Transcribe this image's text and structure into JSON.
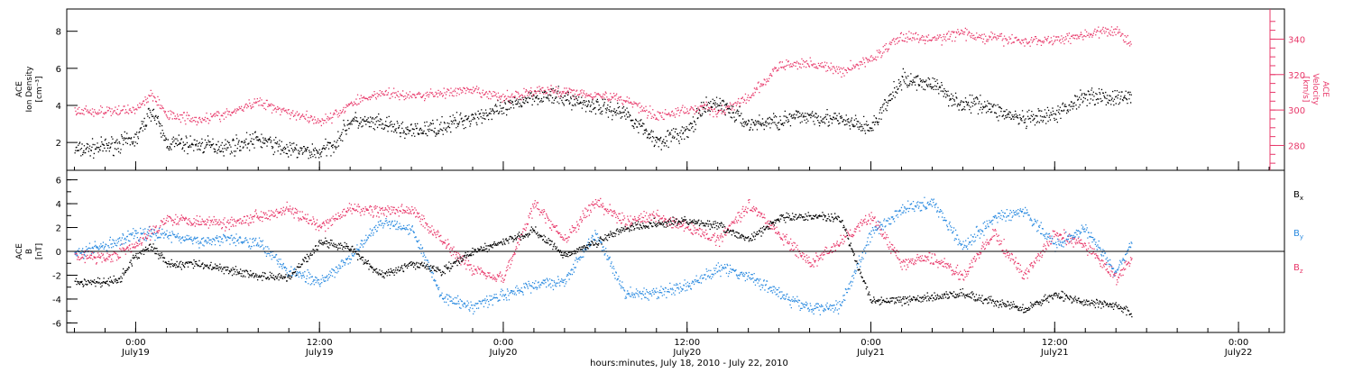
{
  "colors": {
    "axis": "#000000",
    "density": "#000000",
    "velocity": "#e8386a",
    "bx": "#000000",
    "by": "#2a8ae0",
    "bz": "#e8386a"
  },
  "xaxis": {
    "title": "hours:minutes, July 18, 2010 - July 22, 2010",
    "ticks": [
      {
        "time": "0:00",
        "date": "July19"
      },
      {
        "time": "12:00",
        "date": "July19"
      },
      {
        "time": "0:00",
        "date": "July20"
      },
      {
        "time": "12:00",
        "date": "July20"
      },
      {
        "time": "0:00",
        "date": "July21"
      },
      {
        "time": "12:00",
        "date": "July21"
      },
      {
        "time": "0:00",
        "date": "July22"
      }
    ]
  },
  "chart_data": [
    {
      "type": "scatter",
      "panel": "top",
      "ylabel_left": [
        "ACE",
        "Ion Density",
        "[cm⁻³]"
      ],
      "ylabel_right": [
        "ACE",
        "Velocity",
        "[km/s]"
      ],
      "xlim_hours_since_july18": [
        19.5,
        99
      ],
      "ylim_left": [
        0.5,
        9.2
      ],
      "yticks_left": [
        2,
        4,
        6,
        8
      ],
      "ylim_right": [
        266,
        357
      ],
      "yticks_right": [
        280,
        300,
        320,
        340
      ],
      "series": [
        {
          "axis": "left",
          "x": [
            20,
            22,
            24,
            25,
            26,
            28,
            30,
            32,
            34,
            36,
            37,
            38,
            40,
            42,
            44,
            46,
            48,
            50,
            52,
            54,
            56,
            58,
            60,
            61,
            62,
            64,
            66,
            68,
            70,
            72,
            74,
            76,
            78,
            79,
            80,
            82,
            84,
            86,
            88,
            89
          ],
          "y": [
            1.6,
            1.8,
            2.2,
            3.8,
            2.0,
            1.9,
            1.8,
            2.2,
            1.6,
            1.5,
            2.0,
            3.2,
            3.0,
            2.6,
            2.9,
            3.4,
            3.8,
            4.6,
            4.4,
            4.0,
            3.6,
            2.1,
            2.6,
            3.8,
            4.2,
            3.0,
            3.2,
            3.5,
            3.2,
            2.8,
            5.4,
            5.2,
            4.0,
            4.2,
            3.8,
            3.2,
            3.5,
            4.6,
            4.4,
            4.5
          ]
        },
        {
          "axis": "right",
          "x": [
            20,
            22,
            24,
            25,
            26,
            28,
            30,
            32,
            34,
            36,
            37,
            38,
            40,
            42,
            44,
            46,
            48,
            50,
            52,
            54,
            56,
            58,
            60,
            61,
            62,
            64,
            66,
            68,
            70,
            72,
            74,
            76,
            78,
            79,
            80,
            82,
            84,
            86,
            88,
            89
          ],
          "y": [
            300,
            299,
            301,
            309,
            298,
            295,
            298,
            305,
            299,
            294,
            297,
            304,
            310,
            308,
            310,
            311,
            307,
            311,
            311,
            309,
            306,
            297,
            300,
            302,
            299,
            307,
            325,
            327,
            322,
            329,
            342,
            340,
            344,
            341,
            341,
            339,
            340,
            343,
            345,
            338
          ]
        }
      ]
    },
    {
      "type": "scatter",
      "panel": "bottom",
      "ylabel_left": [
        "ACE",
        "B",
        "[nT]"
      ],
      "xlim_hours_since_july18": [
        19.5,
        99
      ],
      "ylim": [
        -6.8,
        6.8
      ],
      "yticks": [
        -6,
        -4,
        -2,
        0,
        2,
        4,
        6
      ],
      "series": [
        {
          "name": "Bx",
          "x": [
            20,
            22,
            23,
            24,
            25,
            26,
            28,
            30,
            32,
            34,
            36,
            38,
            40,
            42,
            44,
            46,
            48,
            50,
            52,
            54,
            56,
            58,
            60,
            62,
            64,
            66,
            68,
            70,
            72,
            74,
            76,
            78,
            80,
            82,
            84,
            86,
            88,
            89
          ],
          "y": [
            -2.6,
            -2.6,
            -2.2,
            -0.3,
            0.5,
            -1.0,
            -1.0,
            -1.5,
            -2.0,
            -2.2,
            0.8,
            0.3,
            -2.0,
            -1.0,
            -1.6,
            0.0,
            0.8,
            1.8,
            -0.3,
            0.8,
            2.0,
            2.4,
            2.6,
            2.2,
            1.0,
            2.8,
            3.0,
            2.8,
            -4.2,
            -4.0,
            -3.8,
            -3.5,
            -4.2,
            -4.8,
            -3.6,
            -4.2,
            -4.5,
            -5.2
          ]
        },
        {
          "name": "By",
          "x": [
            20,
            22,
            24,
            26,
            28,
            30,
            32,
            34,
            36,
            38,
            40,
            42,
            44,
            46,
            48,
            50,
            52,
            54,
            56,
            58,
            60,
            62,
            64,
            66,
            68,
            70,
            72,
            74,
            76,
            78,
            80,
            82,
            84,
            86,
            88,
            89
          ],
          "y": [
            -0.2,
            0.5,
            1.5,
            1.5,
            0.8,
            1.2,
            0.8,
            -1.6,
            -2.6,
            -0.5,
            2.5,
            2.0,
            -3.8,
            -4.6,
            -3.6,
            -2.8,
            -2.4,
            1.5,
            -3.6,
            -3.5,
            -2.8,
            -1.4,
            -2.0,
            -3.5,
            -4.8,
            -4.5,
            1.5,
            3.6,
            4.2,
            0.5,
            2.8,
            3.5,
            0.5,
            2.0,
            -1.8,
            0.8
          ]
        },
        {
          "name": "Bz",
          "x": [
            20,
            22,
            24,
            26,
            28,
            30,
            32,
            34,
            36,
            38,
            40,
            42,
            44,
            46,
            48,
            50,
            52,
            54,
            56,
            58,
            60,
            62,
            64,
            66,
            68,
            70,
            72,
            74,
            76,
            78,
            80,
            82,
            84,
            86,
            88,
            89
          ],
          "y": [
            -0.3,
            -0.5,
            0.5,
            2.8,
            2.6,
            2.4,
            3.0,
            3.6,
            2.0,
            3.6,
            3.4,
            3.5,
            1.0,
            -1.5,
            -2.2,
            4.0,
            1.0,
            4.2,
            2.5,
            3.0,
            2.0,
            1.0,
            4.0,
            1.5,
            -1.0,
            0.8,
            3.0,
            -1.0,
            -0.5,
            -2.0,
            1.5,
            -2.0,
            1.5,
            0.5,
            -2.2,
            -0.5
          ]
        }
      ]
    }
  ]
}
